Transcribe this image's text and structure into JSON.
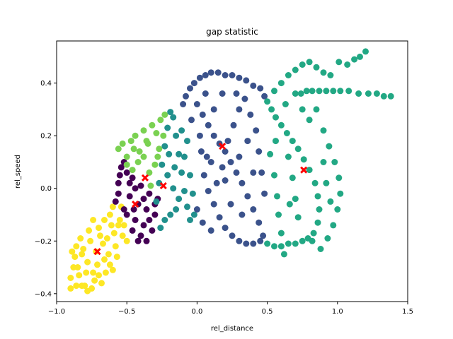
{
  "chart_data": {
    "type": "scatter",
    "title": "gap statistic",
    "xlabel": "rel_distance",
    "ylabel": "rel_speed",
    "xlim": [
      -1.0,
      1.5
    ],
    "ylim": [
      -0.43,
      0.56
    ],
    "xticks": [
      -1.0,
      -0.5,
      0.0,
      0.5,
      1.0,
      1.5
    ],
    "xtick_labels": [
      "−1.0",
      "−0.5",
      "0.0",
      "0.5",
      "1.0",
      "1.5"
    ],
    "yticks": [
      -0.4,
      -0.2,
      0.0,
      0.2,
      0.4
    ],
    "ytick_labels": [
      "−0.4",
      "−0.2",
      "0.0",
      "0.2",
      "0.4"
    ],
    "grid": false,
    "legend": "none",
    "colors": {
      "cluster_0": "#440154",
      "cluster_1": "#3b528b",
      "cluster_2": "#21908d",
      "cluster_3": "#5dc863",
      "cluster_4": "#21a685",
      "cluster_5": "#fde725",
      "centroid": "#ff0000",
      "cluster_3_alt": "#7ad151",
      "cluster_4_alt": "#22a884"
    },
    "series": [
      {
        "color_key": "cluster_5",
        "points": [
          [
            -0.9,
            -0.38
          ],
          [
            -0.88,
            -0.3
          ],
          [
            -0.86,
            -0.22
          ],
          [
            -0.84,
            -0.33
          ],
          [
            -0.82,
            -0.25
          ],
          [
            -0.8,
            -0.37
          ],
          [
            -0.78,
            -0.28
          ],
          [
            -0.76,
            -0.2
          ],
          [
            -0.74,
            -0.32
          ],
          [
            -0.72,
            -0.24
          ],
          [
            -0.7,
            -0.15
          ],
          [
            -0.68,
            -0.36
          ],
          [
            -0.66,
            -0.27
          ],
          [
            -0.64,
            -0.19
          ],
          [
            -0.62,
            -0.1
          ],
          [
            -0.6,
            -0.31
          ],
          [
            -0.58,
            -0.22
          ],
          [
            -0.56,
            -0.14
          ],
          [
            -0.54,
            -0.07
          ],
          [
            -0.9,
            -0.34
          ],
          [
            -0.87,
            -0.26
          ],
          [
            -0.83,
            -0.19
          ],
          [
            -0.79,
            -0.32
          ],
          [
            -0.75,
            -0.38
          ],
          [
            -0.71,
            -0.29
          ],
          [
            -0.67,
            -0.21
          ],
          [
            -0.63,
            -0.25
          ],
          [
            -0.59,
            -0.17
          ],
          [
            -0.55,
            -0.12
          ],
          [
            -0.85,
            -0.3
          ],
          [
            -0.81,
            -0.23
          ],
          [
            -0.77,
            -0.16
          ],
          [
            -0.73,
            -0.35
          ],
          [
            -0.69,
            -0.18
          ],
          [
            -0.65,
            -0.32
          ],
          [
            -0.61,
            -0.14
          ],
          [
            -0.57,
            -0.26
          ],
          [
            -0.53,
            -0.18
          ],
          [
            -0.89,
            -0.24
          ],
          [
            -0.82,
            -0.37
          ],
          [
            -0.74,
            -0.12
          ],
          [
            -0.66,
            -0.12
          ],
          [
            -0.6,
            -0.07
          ],
          [
            -0.52,
            -0.14
          ],
          [
            -0.86,
            -0.37
          ],
          [
            -0.78,
            -0.39
          ],
          [
            -0.7,
            -0.33
          ],
          [
            -0.62,
            -0.29
          ],
          [
            -0.5,
            -0.2
          ]
        ]
      },
      {
        "color_key": "cluster_0",
        "points": [
          [
            -0.58,
            -0.05
          ],
          [
            -0.56,
            0.02
          ],
          [
            -0.54,
            0.08
          ],
          [
            -0.52,
            0.1
          ],
          [
            -0.5,
            -0.1
          ],
          [
            -0.48,
            -0.03
          ],
          [
            -0.46,
            0.04
          ],
          [
            -0.44,
            -0.12
          ],
          [
            -0.42,
            -0.06
          ],
          [
            -0.4,
            0.01
          ],
          [
            -0.38,
            -0.14
          ],
          [
            -0.36,
            -0.08
          ],
          [
            -0.34,
            -0.02
          ],
          [
            -0.32,
            -0.16
          ],
          [
            -0.3,
            -0.1
          ],
          [
            -0.28,
            -0.04
          ],
          [
            -0.5,
            0.06
          ],
          [
            -0.46,
            -0.16
          ],
          [
            -0.42,
            -0.2
          ],
          [
            -0.4,
            -0.18
          ],
          [
            -0.36,
            -0.2
          ],
          [
            -0.56,
            -0.02
          ],
          [
            -0.52,
            -0.08
          ],
          [
            -0.48,
            0.02
          ],
          [
            -0.44,
            0.0
          ],
          [
            -0.38,
            -0.04
          ],
          [
            -0.34,
            -0.12
          ],
          [
            -0.3,
            -0.06
          ],
          [
            -0.55,
            0.05
          ],
          [
            -0.45,
            -0.08
          ]
        ]
      },
      {
        "color_key": "cluster_3_alt",
        "points": [
          [
            -0.56,
            0.15
          ],
          [
            -0.53,
            0.17
          ],
          [
            -0.5,
            0.12
          ],
          [
            -0.47,
            0.18
          ],
          [
            -0.44,
            0.2
          ],
          [
            -0.41,
            0.14
          ],
          [
            -0.38,
            0.22
          ],
          [
            -0.35,
            0.17
          ],
          [
            -0.32,
            0.24
          ],
          [
            -0.29,
            0.21
          ],
          [
            -0.26,
            0.26
          ],
          [
            -0.23,
            0.28
          ],
          [
            -0.5,
            0.09
          ],
          [
            -0.46,
            0.07
          ],
          [
            -0.42,
            0.1
          ],
          [
            -0.38,
            0.12
          ],
          [
            -0.34,
            0.06
          ],
          [
            -0.3,
            0.09
          ],
          [
            -0.27,
            0.15
          ],
          [
            -0.24,
            0.2
          ],
          [
            -0.45,
            0.15
          ],
          [
            -0.36,
            0.18
          ],
          [
            -0.28,
            0.12
          ],
          [
            -0.33,
            0.01
          ]
        ]
      },
      {
        "color_key": "cluster_2",
        "points": [
          [
            -0.29,
            -0.05
          ],
          [
            -0.27,
            0.02
          ],
          [
            -0.25,
            0.09
          ],
          [
            -0.23,
            0.16
          ],
          [
            -0.21,
            0.23
          ],
          [
            -0.19,
            0.29
          ],
          [
            -0.17,
            0.27
          ],
          [
            -0.15,
            0.2
          ],
          [
            -0.13,
            0.13
          ],
          [
            -0.11,
            0.06
          ],
          [
            -0.09,
            -0.01
          ],
          [
            -0.07,
            -0.07
          ],
          [
            -0.05,
            -0.12
          ],
          [
            -0.15,
            -0.08
          ],
          [
            -0.19,
            -0.1
          ],
          [
            -0.23,
            -0.12
          ],
          [
            -0.26,
            -0.15
          ],
          [
            -0.21,
            0.05
          ],
          [
            -0.17,
            0.0
          ],
          [
            -0.13,
            -0.04
          ],
          [
            -0.09,
            0.12
          ],
          [
            -0.05,
            0.05
          ],
          [
            -0.03,
            -0.02
          ],
          [
            -0.11,
            0.22
          ],
          [
            -0.07,
            0.18
          ],
          [
            -0.2,
            0.13
          ],
          [
            -0.16,
            0.08
          ],
          [
            -0.02,
            -0.1
          ]
        ]
      },
      {
        "color_key": "cluster_1",
        "points": [
          [
            -0.1,
            0.32
          ],
          [
            -0.08,
            0.35
          ],
          [
            -0.05,
            0.38
          ],
          [
            -0.02,
            0.4
          ],
          [
            0.02,
            0.42
          ],
          [
            0.06,
            0.43
          ],
          [
            0.1,
            0.44
          ],
          [
            0.15,
            0.44
          ],
          [
            0.2,
            0.43
          ],
          [
            0.25,
            0.43
          ],
          [
            0.3,
            0.42
          ],
          [
            0.35,
            0.41
          ],
          [
            0.4,
            0.39
          ],
          [
            0.45,
            0.38
          ],
          [
            0.48,
            0.35
          ],
          [
            0.0,
            0.32
          ],
          [
            0.04,
            0.28
          ],
          [
            0.08,
            0.24
          ],
          [
            0.12,
            0.2
          ],
          [
            0.16,
            0.17
          ],
          [
            0.2,
            0.14
          ],
          [
            0.24,
            0.1
          ],
          [
            0.28,
            0.06
          ],
          [
            0.32,
            0.02
          ],
          [
            0.36,
            -0.03
          ],
          [
            0.4,
            -0.08
          ],
          [
            0.44,
            -0.13
          ],
          [
            0.47,
            -0.18
          ],
          [
            0.05,
            0.05
          ],
          [
            0.08,
            -0.01
          ],
          [
            0.12,
            -0.06
          ],
          [
            0.16,
            -0.11
          ],
          [
            0.2,
            -0.15
          ],
          [
            0.25,
            -0.18
          ],
          [
            0.3,
            -0.2
          ],
          [
            0.35,
            -0.21
          ],
          [
            0.4,
            -0.21
          ],
          [
            0.45,
            -0.2
          ],
          [
            0.1,
            0.1
          ],
          [
            0.14,
            0.02
          ],
          [
            0.18,
            0.08
          ],
          [
            0.22,
            0.18
          ],
          [
            0.26,
            0.24
          ],
          [
            0.3,
            0.3
          ],
          [
            0.34,
            0.34
          ],
          [
            0.38,
            0.28
          ],
          [
            0.42,
            0.22
          ],
          [
            0.44,
            0.14
          ],
          [
            0.46,
            0.06
          ],
          [
            0.48,
            -0.02
          ],
          [
            0.03,
            0.14
          ],
          [
            0.07,
            0.12
          ],
          [
            -0.04,
            0.26
          ],
          [
            0.02,
            0.2
          ],
          [
            0.06,
            0.36
          ],
          [
            0.18,
            0.36
          ],
          [
            0.28,
            0.36
          ],
          [
            0.36,
            0.18
          ],
          [
            0.4,
            0.06
          ],
          [
            0.32,
            -0.1
          ],
          [
            0.24,
            -0.06
          ],
          [
            0.0,
            -0.08
          ],
          [
            0.04,
            -0.13
          ],
          [
            0.1,
            -0.16
          ],
          [
            0.2,
            0.03
          ],
          [
            0.3,
            0.12
          ],
          [
            0.12,
            0.3
          ]
        ]
      },
      {
        "color_key": "cluster_4_alt",
        "points": [
          [
            0.5,
            0.33
          ],
          [
            0.53,
            0.3
          ],
          [
            0.56,
            0.27
          ],
          [
            0.6,
            0.24
          ],
          [
            0.64,
            0.21
          ],
          [
            0.68,
            0.18
          ],
          [
            0.72,
            0.15
          ],
          [
            0.76,
            0.11
          ],
          [
            0.8,
            0.07
          ],
          [
            0.84,
            0.02
          ],
          [
            0.86,
            -0.03
          ],
          [
            0.87,
            -0.08
          ],
          [
            0.86,
            -0.13
          ],
          [
            0.83,
            -0.17
          ],
          [
            0.79,
            -0.19
          ],
          [
            0.75,
            -0.2
          ],
          [
            0.7,
            -0.21
          ],
          [
            0.65,
            -0.21
          ],
          [
            0.6,
            -0.22
          ],
          [
            0.55,
            -0.22
          ],
          [
            0.5,
            -0.21
          ],
          [
            0.9,
            0.22
          ],
          [
            0.94,
            0.16
          ],
          [
            0.98,
            0.1
          ],
          [
            1.01,
            0.04
          ],
          [
            1.02,
            -0.02
          ],
          [
            1.0,
            -0.08
          ],
          [
            0.97,
            -0.14
          ],
          [
            0.93,
            -0.19
          ],
          [
            0.88,
            -0.23
          ],
          [
            0.82,
            -0.2
          ],
          [
            0.52,
            0.13
          ],
          [
            0.55,
            0.05
          ],
          [
            0.57,
            -0.03
          ],
          [
            0.58,
            -0.1
          ],
          [
            0.6,
            -0.17
          ],
          [
            0.62,
            -0.25
          ],
          [
            0.65,
            0.12
          ],
          [
            0.68,
            0.04
          ],
          [
            0.7,
            -0.04
          ],
          [
            0.72,
            -0.11
          ],
          [
            0.75,
            0.3
          ],
          [
            0.8,
            0.26
          ],
          [
            0.85,
            0.3
          ],
          [
            0.55,
            0.37
          ],
          [
            0.6,
            0.4
          ],
          [
            0.65,
            0.43
          ],
          [
            0.7,
            0.45
          ],
          [
            0.75,
            0.47
          ],
          [
            0.8,
            0.48
          ],
          [
            0.85,
            0.46
          ],
          [
            0.9,
            0.44
          ],
          [
            0.95,
            0.43
          ],
          [
            1.01,
            0.48
          ],
          [
            1.07,
            0.47
          ],
          [
            1.12,
            0.49
          ],
          [
            1.16,
            0.5
          ],
          [
            1.2,
            0.52
          ],
          [
            0.7,
            0.36
          ],
          [
            0.74,
            0.36
          ],
          [
            0.78,
            0.37
          ],
          [
            0.82,
            0.37
          ],
          [
            0.87,
            0.37
          ],
          [
            0.92,
            0.37
          ],
          [
            0.97,
            0.37
          ],
          [
            1.02,
            0.37
          ],
          [
            1.08,
            0.37
          ],
          [
            1.15,
            0.36
          ],
          [
            1.22,
            0.36
          ],
          [
            1.28,
            0.36
          ],
          [
            1.33,
            0.35
          ],
          [
            1.38,
            0.35
          ],
          [
            0.9,
            0.1
          ],
          [
            0.92,
            0.02
          ],
          [
            0.95,
            -0.05
          ],
          [
            0.63,
            0.32
          ],
          [
            0.66,
            -0.06
          ],
          [
            0.56,
            0.18
          ]
        ]
      }
    ],
    "centroids": [
      [
        -0.71,
        -0.24
      ],
      [
        -0.44,
        -0.06
      ],
      [
        -0.37,
        0.04
      ],
      [
        -0.24,
        0.01
      ],
      [
        0.18,
        0.16
      ],
      [
        0.76,
        0.07
      ]
    ]
  }
}
